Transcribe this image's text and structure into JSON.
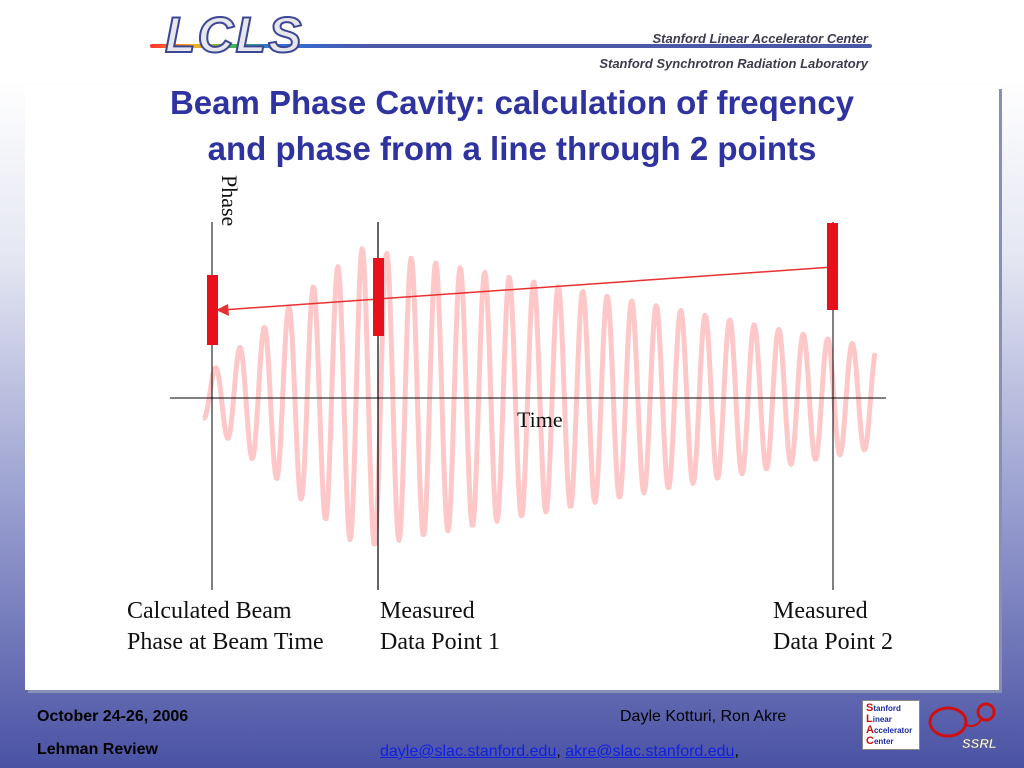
{
  "header": {
    "logo_text": "LCLS",
    "org_line1": "Stanford Linear Accelerator Center",
    "org_line2": "Stanford Synchrotron Radiation Laboratory"
  },
  "title": {
    "line1": "Beam Phase Cavity: calculation of freqency",
    "line2": "and phase from a line through 2 points"
  },
  "diagram": {
    "phase_axis_label": "Phase",
    "time_axis_label": "Time",
    "captions": {
      "calculated": {
        "line1": "Calculated Beam",
        "line2": "Phase at Beam Time"
      },
      "point1": {
        "line1": "Measured",
        "line2": "Data Point 1"
      },
      "point2": {
        "line1": "Measured",
        "line2": "Data Point 2"
      }
    },
    "colors": {
      "signal": "#ffc8c8",
      "marker": "#e8101a",
      "arrow": "#e83030",
      "axis": "#000000"
    }
  },
  "footer": {
    "date": "October 24-26, 2006",
    "event": "Lehman Review",
    "authors": "Dayle Kotturi, Ron Akre",
    "email1": "dayle@slac.stanford.edu",
    "separator": ", ",
    "email2": "akre@slac.stanford.edu",
    "trailing": ",",
    "slac_badge": {
      "l1": "tanford",
      "l2": "inear",
      "l3": "ccelerator",
      "l4": "enter",
      "c1": "S",
      "c2": "L",
      "c3": "A",
      "c4": "C"
    },
    "ssrl_text": "SSRL"
  }
}
